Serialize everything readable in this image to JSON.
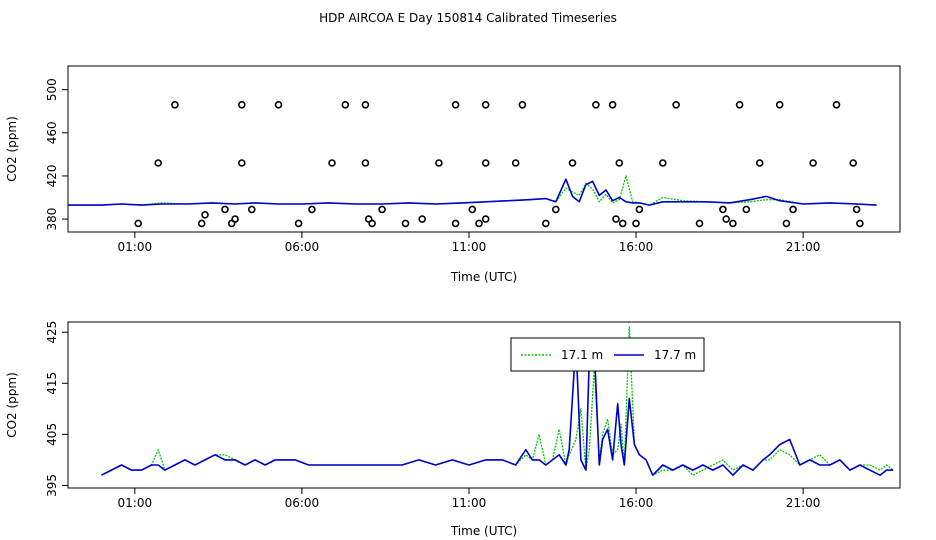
{
  "title": "HDP AIRCOA E  Day 150814  Calibrated Timeseries",
  "colors": {
    "series_17_1": "#00c800",
    "series_17_7": "#0000cc",
    "axis": "#000000"
  },
  "chart_data": [
    {
      "type": "scatter",
      "xlabel": "Time (UTC)",
      "ylabel": "CO2 (ppm)",
      "xlim": [
        -1.0,
        23.9
      ],
      "ylim": [
        368,
        522
      ],
      "x_ticks": [
        "01:00",
        "06:00",
        "11:00",
        "16:00",
        "21:00"
      ],
      "x_tick_values": [
        1,
        6,
        11,
        16,
        21
      ],
      "y_ticks": [
        "380",
        "420",
        "460",
        "500"
      ],
      "y_tick_values": [
        380,
        420,
        460,
        500
      ],
      "grid": false,
      "marker_series": {
        "name": "",
        "points": [
          [
            1.1,
            376
          ],
          [
            1.7,
            432
          ],
          [
            2.2,
            486
          ],
          [
            3.0,
            376
          ],
          [
            3.1,
            384
          ],
          [
            3.7,
            389
          ],
          [
            3.9,
            376
          ],
          [
            4.0,
            380
          ],
          [
            4.2,
            486
          ],
          [
            4.2,
            432
          ],
          [
            4.5,
            389
          ],
          [
            5.3,
            486
          ],
          [
            5.9,
            376
          ],
          [
            6.3,
            389
          ],
          [
            6.9,
            432
          ],
          [
            7.3,
            486
          ],
          [
            7.9,
            486
          ],
          [
            7.9,
            432
          ],
          [
            8.0,
            380
          ],
          [
            8.1,
            376
          ],
          [
            8.4,
            389
          ],
          [
            9.1,
            376
          ],
          [
            9.6,
            380
          ],
          [
            10.1,
            432
          ],
          [
            10.6,
            486
          ],
          [
            10.6,
            376
          ],
          [
            11.1,
            389
          ],
          [
            11.3,
            376
          ],
          [
            11.5,
            380
          ],
          [
            11.5,
            486
          ],
          [
            11.5,
            432
          ],
          [
            12.4,
            432
          ],
          [
            12.6,
            486
          ],
          [
            13.3,
            376
          ],
          [
            13.6,
            389
          ],
          [
            14.1,
            432
          ],
          [
            14.8,
            486
          ],
          [
            15.3,
            486
          ],
          [
            15.5,
            432
          ],
          [
            15.4,
            380
          ],
          [
            15.6,
            376
          ],
          [
            16.0,
            376
          ],
          [
            16.1,
            389
          ],
          [
            16.8,
            432
          ],
          [
            17.2,
            486
          ],
          [
            17.9,
            376
          ],
          [
            18.6,
            389
          ],
          [
            18.7,
            380
          ],
          [
            18.9,
            376
          ],
          [
            19.1,
            486
          ],
          [
            19.3,
            389
          ],
          [
            19.7,
            432
          ],
          [
            20.3,
            486
          ],
          [
            20.5,
            376
          ],
          [
            20.7,
            389
          ],
          [
            21.3,
            432
          ],
          [
            22.0,
            486
          ],
          [
            22.5,
            432
          ],
          [
            22.6,
            389
          ],
          [
            22.7,
            376
          ]
        ]
      },
      "series": [
        {
          "name": "",
          "color": "#00c800",
          "x": [
            -1.0,
            0.0,
            0.6,
            1.2,
            1.8,
            2.6,
            3.3,
            4.0,
            4.6,
            5.3,
            6.0,
            6.8,
            7.6,
            8.4,
            9.2,
            10.0,
            10.8,
            11.5,
            12.2,
            12.8,
            13.3,
            13.6,
            13.9,
            14.1,
            14.3,
            14.5,
            14.7,
            14.9,
            15.1,
            15.3,
            15.5,
            15.7,
            15.9,
            16.1,
            16.4,
            16.8,
            17.4,
            18.1,
            18.8,
            19.4,
            19.9,
            20.3,
            21.0,
            21.8,
            22.6,
            23.2
          ],
          "y": [
            393,
            393,
            394,
            393,
            395,
            394,
            395,
            394,
            395,
            394,
            394,
            395,
            394,
            394,
            395,
            394,
            395,
            396,
            397,
            398,
            399,
            396,
            409,
            405,
            402,
            413,
            408,
            396,
            403,
            395,
            398,
            420,
            396,
            395,
            393,
            400,
            397,
            396,
            395,
            396,
            398,
            398,
            394,
            395,
            394,
            393
          ]
        },
        {
          "name": "",
          "color": "#0000cc",
          "x": [
            -1.0,
            0.0,
            0.6,
            1.2,
            1.8,
            2.6,
            3.3,
            4.0,
            4.6,
            5.3,
            6.0,
            6.8,
            7.6,
            8.4,
            9.2,
            10.0,
            10.8,
            11.5,
            12.2,
            12.8,
            13.3,
            13.6,
            13.9,
            14.1,
            14.3,
            14.5,
            14.7,
            14.9,
            15.1,
            15.3,
            15.5,
            15.7,
            15.9,
            16.1,
            16.4,
            16.8,
            17.4,
            18.1,
            18.8,
            19.4,
            19.9,
            20.3,
            21.0,
            21.8,
            22.6,
            23.2
          ],
          "y": [
            393,
            393,
            394,
            393,
            394,
            394,
            395,
            394,
            395,
            394,
            394,
            395,
            394,
            394,
            395,
            394,
            395,
            396,
            397,
            398,
            399,
            396,
            417,
            401,
            396,
            412,
            415,
            402,
            407,
            397,
            400,
            396,
            395,
            395,
            393,
            396,
            396,
            396,
            395,
            398,
            401,
            397,
            394,
            395,
            394,
            393
          ]
        }
      ]
    },
    {
      "type": "line",
      "xlabel": "Time (UTC)",
      "ylabel": "CO2 (ppm)",
      "xlim": [
        -1.0,
        23.9
      ],
      "ylim": [
        394.5,
        427
      ],
      "x_ticks": [
        "01:00",
        "06:00",
        "11:00",
        "16:00",
        "21:00"
      ],
      "x_tick_values": [
        1,
        6,
        11,
        16,
        21
      ],
      "y_ticks": [
        "395",
        "405",
        "415",
        "425"
      ],
      "y_tick_values": [
        395,
        405,
        415,
        425
      ],
      "grid": false,
      "legend_position": "top-right",
      "series": [
        {
          "name": "17.1 m",
          "color": "#00c800",
          "x": [
            0.0,
            0.3,
            0.6,
            0.9,
            1.2,
            1.5,
            1.7,
            1.9,
            2.2,
            2.5,
            2.8,
            3.1,
            3.4,
            3.7,
            4.0,
            4.3,
            4.6,
            4.9,
            5.2,
            5.5,
            5.8,
            6.2,
            6.6,
            7.0,
            7.5,
            8.0,
            8.5,
            9.0,
            9.5,
            10.0,
            10.5,
            11.0,
            11.5,
            12.0,
            12.4,
            12.7,
            12.9,
            13.1,
            13.3,
            13.5,
            13.7,
            13.9,
            14.0,
            14.2,
            14.35,
            14.5,
            14.6,
            14.75,
            14.9,
            15.0,
            15.15,
            15.3,
            15.45,
            15.55,
            15.65,
            15.8,
            15.95,
            16.1,
            16.3,
            16.5,
            16.8,
            17.1,
            17.4,
            17.7,
            18.0,
            18.3,
            18.6,
            18.9,
            19.2,
            19.5,
            19.8,
            20.0,
            20.3,
            20.6,
            20.9,
            21.2,
            21.5,
            21.8,
            22.1,
            22.4,
            22.7,
            23.0,
            23.3,
            23.5,
            23.7
          ],
          "y": [
            397,
            398,
            399,
            398,
            398,
            399,
            402,
            398,
            399,
            400,
            399,
            400,
            401,
            401,
            400,
            399,
            400,
            399,
            400,
            400,
            400,
            399,
            399,
            399,
            399,
            399,
            399,
            399,
            400,
            399,
            400,
            399,
            400,
            400,
            399,
            401,
            400,
            405,
            399,
            400,
            406,
            399,
            401,
            404,
            410,
            398,
            402,
            418,
            400,
            405,
            408,
            401,
            402,
            407,
            399,
            426,
            403,
            401,
            400,
            397,
            398,
            398,
            399,
            397,
            398,
            399,
            400,
            398,
            399,
            398,
            400,
            400,
            402,
            401,
            399,
            400,
            401,
            399,
            400,
            398,
            399,
            399,
            398,
            399,
            398
          ]
        },
        {
          "name": "17.7 m",
          "color": "#0000cc",
          "x": [
            0.0,
            0.3,
            0.6,
            0.9,
            1.2,
            1.5,
            1.7,
            1.9,
            2.2,
            2.5,
            2.8,
            3.1,
            3.4,
            3.7,
            4.0,
            4.3,
            4.6,
            4.9,
            5.2,
            5.5,
            5.8,
            6.2,
            6.6,
            7.0,
            7.5,
            8.0,
            8.5,
            9.0,
            9.5,
            10.0,
            10.5,
            11.0,
            11.5,
            12.0,
            12.4,
            12.7,
            12.9,
            13.1,
            13.3,
            13.5,
            13.7,
            13.9,
            14.0,
            14.2,
            14.35,
            14.5,
            14.6,
            14.75,
            14.9,
            15.0,
            15.15,
            15.3,
            15.45,
            15.55,
            15.65,
            15.8,
            15.95,
            16.1,
            16.3,
            16.5,
            16.8,
            17.1,
            17.4,
            17.7,
            18.0,
            18.3,
            18.6,
            18.9,
            19.2,
            19.5,
            19.8,
            20.0,
            20.3,
            20.6,
            20.9,
            21.2,
            21.5,
            21.8,
            22.1,
            22.4,
            22.7,
            23.0,
            23.3,
            23.5,
            23.7
          ],
          "y": [
            397,
            398,
            399,
            398,
            398,
            399,
            399,
            398,
            399,
            400,
            399,
            400,
            401,
            400,
            400,
            399,
            400,
            399,
            400,
            400,
            400,
            399,
            399,
            399,
            399,
            399,
            399,
            399,
            400,
            399,
            400,
            399,
            400,
            400,
            399,
            402,
            400,
            400,
            399,
            400,
            401,
            399,
            402,
            423,
            400,
            398,
            420,
            422,
            399,
            404,
            406,
            400,
            411,
            403,
            399,
            412,
            403,
            401,
            400,
            397,
            399,
            398,
            399,
            398,
            399,
            398,
            399,
            397,
            399,
            398,
            400,
            401,
            403,
            404,
            399,
            400,
            399,
            399,
            400,
            398,
            399,
            398,
            397,
            398,
            398
          ]
        }
      ]
    }
  ]
}
